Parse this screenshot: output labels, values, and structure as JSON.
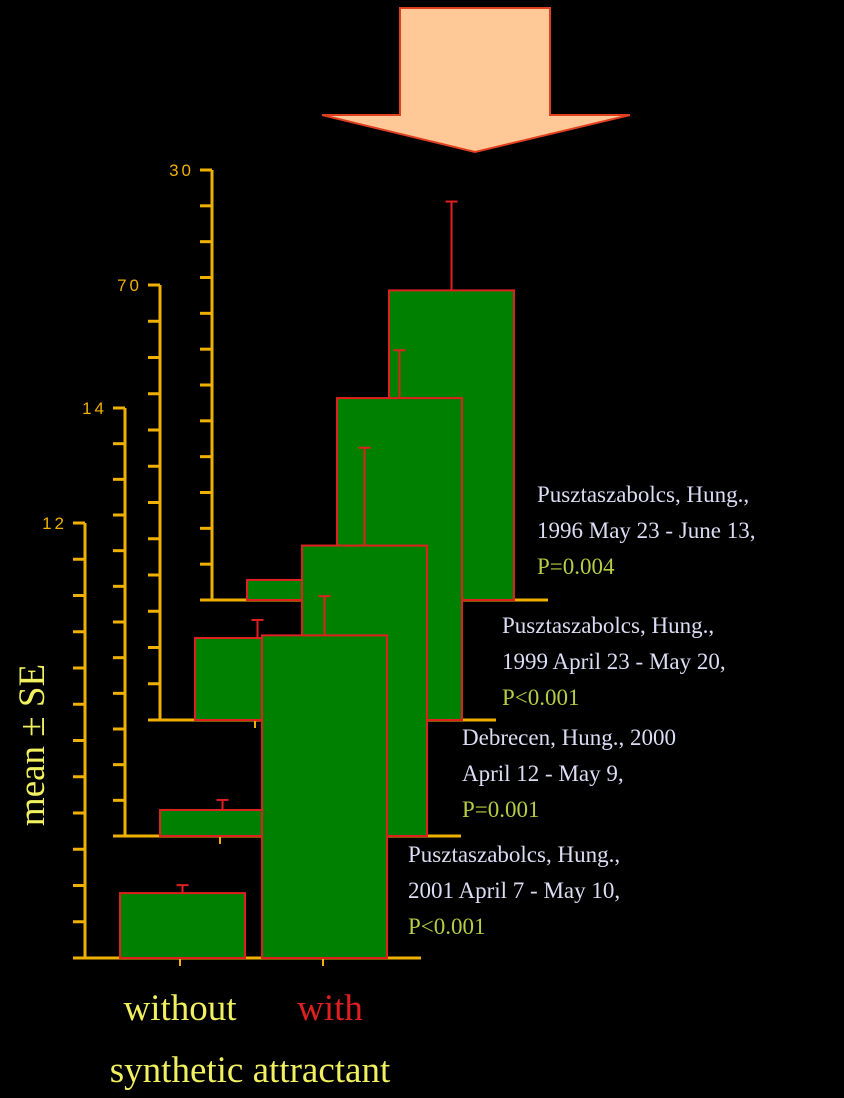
{
  "chart_data": [
    {
      "type": "bar",
      "values": [
        1.4,
        21.6
      ],
      "errors": [
        0,
        6.2
      ],
      "ylim": [
        0,
        30
      ],
      "yticks": [
        30
      ],
      "color": "#008000",
      "annotation": [
        "Pusztaszabolcs, Hung.,",
        "1996 May 23 - June 13,",
        "P=0.004"
      ]
    },
    {
      "type": "bar",
      "values": [
        13.2,
        51.8
      ],
      "errors": [
        2.9,
        7.7
      ],
      "ylim": [
        0,
        70
      ],
      "yticks": [
        70
      ],
      "color": "#008000",
      "annotation": [
        "Pusztaszabolcs, Hung.,",
        "1999 April 23 - May 20,",
        "P<0.001"
      ]
    },
    {
      "type": "bar",
      "values": [
        0.85,
        9.5
      ],
      "errors": [
        0.33,
        3.2
      ],
      "ylim": [
        0,
        14
      ],
      "yticks": [
        14
      ],
      "color": "#008000",
      "annotation": [
        "Debrecen, Hung., 2000",
        "April 12 - May 9,",
        "P=0.001"
      ]
    },
    {
      "type": "bar",
      "values": [
        1.79,
        8.9
      ],
      "errors": [
        0.22,
        1.08
      ],
      "ylim": [
        0,
        12
      ],
      "yticks": [
        12
      ],
      "color": "#008000",
      "annotation": [
        "Pusztaszabolcs, Hung.,",
        "2001 April 7 - May 10,",
        "P<0.001"
      ],
      "categories": [
        "without",
        "with"
      ],
      "category_colors": [
        "#f0f060",
        "#e02020"
      ],
      "xlabel": "synthetic attractant",
      "ylabel": "mean ± SE"
    }
  ]
}
